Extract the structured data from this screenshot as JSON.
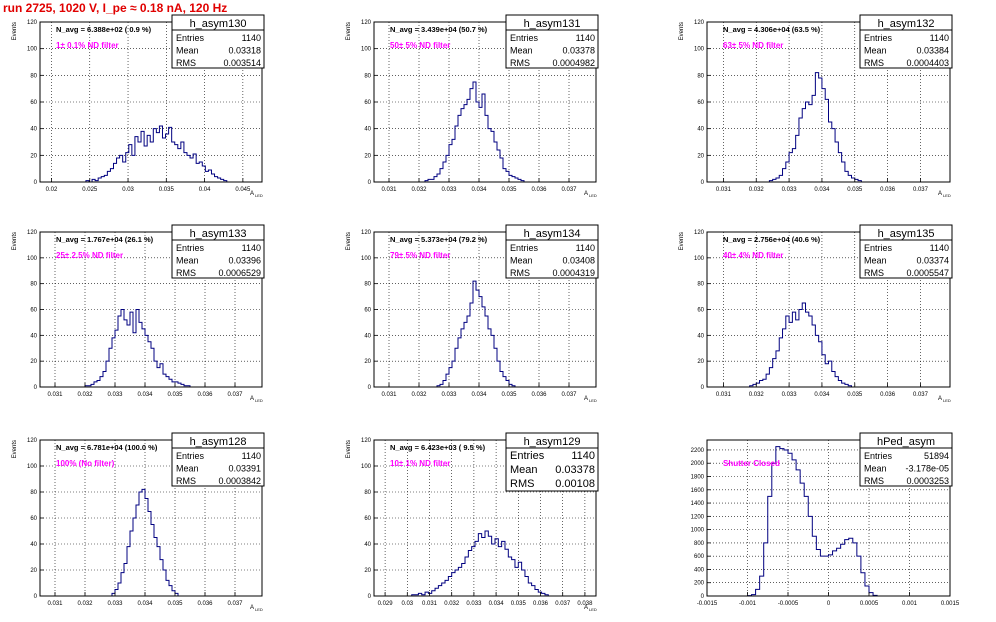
{
  "page": {
    "title": "run 2725,  1020 V, I_pe ≈ 0.18 nA, 120 Hz"
  },
  "colors": {
    "title": "#e00000",
    "histogram_line": "#000080",
    "annotation": "#ff00ff",
    "grid": "#000000"
  },
  "chart_data": [
    {
      "type": "bar",
      "histogram": true,
      "name": "h_asym130",
      "stats": {
        "entries": "1140",
        "mean": "0.03318",
        "rms": "0.003514"
      },
      "navg": "N_avg = 6.388e+02 ( 0.9 %)",
      "annotation": "1± 0.1% ND filter",
      "ylabel": "Events",
      "xlabel": "A",
      "xlabel_sub": "LED",
      "xlim": [
        0.0185,
        0.0475
      ],
      "ylim": [
        0,
        120
      ],
      "xticks": [
        0.02,
        0.025,
        0.03,
        0.035,
        0.04,
        0.045
      ],
      "xtick_labels": [
        "0.02",
        "0.025",
        "0.03",
        "0.035",
        "0.04",
        "0.045"
      ],
      "yticks": [
        0,
        20,
        40,
        60,
        80,
        100,
        120
      ],
      "ytick_labels": [
        "0",
        "20",
        "40",
        "60",
        "80",
        "100",
        "120"
      ],
      "bins": {
        "start": 0.0245,
        "width": 0.0004,
        "values": [
          1,
          0,
          2,
          1,
          3,
          4,
          5,
          8,
          10,
          14,
          18,
          20,
          15,
          22,
          28,
          20,
          34,
          30,
          38,
          27,
          35,
          30,
          40,
          37,
          42,
          33,
          36,
          41,
          30,
          28,
          25,
          30,
          22,
          20,
          18,
          21,
          14,
          15,
          12,
          8,
          9,
          6,
          4,
          3,
          2,
          1
        ]
      }
    },
    {
      "type": "bar",
      "histogram": true,
      "name": "h_asym131",
      "stats": {
        "entries": "1140",
        "mean": "0.03378",
        "rms": "0.0004982"
      },
      "navg": "N_avg = 3.439e+04 (50.7 %)",
      "annotation": "50± 5% ND filter",
      "ylabel": "Events",
      "xlabel": "A",
      "xlabel_sub": "LED",
      "xlim": [
        0.0305,
        0.0379
      ],
      "ylim": [
        0,
        120
      ],
      "xticks": [
        0.031,
        0.032,
        0.033,
        0.034,
        0.035,
        0.036,
        0.037
      ],
      "xtick_labels": [
        "0.031",
        "0.032",
        "0.033",
        "0.034",
        "0.035",
        "0.036",
        "0.037"
      ],
      "yticks": [
        0,
        20,
        40,
        60,
        80,
        100,
        120
      ],
      "ytick_labels": [
        "0",
        "20",
        "40",
        "60",
        "80",
        "100",
        "120"
      ],
      "bins": {
        "start": 0.0322,
        "width": 0.0001,
        "values": [
          1,
          2,
          2,
          4,
          6,
          10,
          15,
          20,
          28,
          32,
          42,
          50,
          55,
          58,
          62,
          70,
          75,
          60,
          56,
          66,
          50,
          40,
          38,
          30,
          24,
          18,
          10,
          8,
          5,
          4,
          3,
          2,
          1
        ]
      }
    },
    {
      "type": "bar",
      "histogram": true,
      "name": "h_asym132",
      "stats": {
        "entries": "1140",
        "mean": "0.03384",
        "rms": "0.0004403"
      },
      "navg": "N_avg = 4.306e+04 (63.5 %)",
      "annotation": "63± 5% ND filter",
      "ylabel": "Events",
      "xlabel": "A",
      "xlabel_sub": "LED",
      "xlim": [
        0.0305,
        0.0379
      ],
      "ylim": [
        0,
        120
      ],
      "xticks": [
        0.031,
        0.032,
        0.033,
        0.034,
        0.035,
        0.036,
        0.037
      ],
      "xtick_labels": [
        "0.031",
        "0.032",
        "0.033",
        "0.034",
        "0.035",
        "0.036",
        "0.037"
      ],
      "yticks": [
        0,
        20,
        40,
        60,
        80,
        100,
        120
      ],
      "ytick_labels": [
        "0",
        "20",
        "40",
        "60",
        "80",
        "100",
        "120"
      ],
      "bins": {
        "start": 0.0324,
        "width": 0.0001,
        "values": [
          1,
          2,
          3,
          5,
          10,
          15,
          22,
          25,
          35,
          48,
          55,
          60,
          58,
          65,
          82,
          78,
          70,
          62,
          45,
          40,
          30,
          22,
          15,
          8,
          5,
          3,
          2,
          1
        ]
      }
    },
    {
      "type": "bar",
      "histogram": true,
      "name": "h_asym133",
      "stats": {
        "entries": "1140",
        "mean": "0.03396",
        "rms": "0.0006529"
      },
      "navg": "N_avg = 1.767e+04 (26.1 %)",
      "annotation": "25± 2.5% ND filter",
      "ylabel": "Events",
      "xlabel": "A",
      "xlabel_sub": "LED",
      "xlim": [
        0.0305,
        0.0379
      ],
      "ylim": [
        0,
        120
      ],
      "xticks": [
        0.031,
        0.032,
        0.033,
        0.034,
        0.035,
        0.036,
        0.037
      ],
      "xtick_labels": [
        "0.031",
        "0.032",
        "0.033",
        "0.034",
        "0.035",
        "0.036",
        "0.037"
      ],
      "yticks": [
        0,
        20,
        40,
        60,
        80,
        100,
        120
      ],
      "ytick_labels": [
        "0",
        "20",
        "40",
        "60",
        "80",
        "100",
        "120"
      ],
      "bins": {
        "start": 0.032,
        "width": 0.0001,
        "values": [
          1,
          1,
          2,
          4,
          5,
          8,
          12,
          20,
          30,
          38,
          44,
          55,
          60,
          52,
          48,
          58,
          42,
          60,
          50,
          45,
          40,
          35,
          30,
          20,
          15,
          18,
          10,
          8,
          6,
          4,
          4,
          3,
          2,
          1,
          1
        ]
      }
    },
    {
      "type": "bar",
      "histogram": true,
      "name": "h_asym134",
      "stats": {
        "entries": "1140",
        "mean": "0.03408",
        "rms": "0.0004319"
      },
      "navg": "N_avg = 5.373e+04 (79.2 %)",
      "annotation": "79± 5% ND filter",
      "ylabel": "Events",
      "xlabel": "A",
      "xlabel_sub": "LED",
      "xlim": [
        0.0305,
        0.0379
      ],
      "ylim": [
        0,
        120
      ],
      "xticks": [
        0.031,
        0.032,
        0.033,
        0.034,
        0.035,
        0.036,
        0.037
      ],
      "xtick_labels": [
        "0.031",
        "0.032",
        "0.033",
        "0.034",
        "0.035",
        "0.036",
        "0.037"
      ],
      "yticks": [
        0,
        20,
        40,
        60,
        80,
        100,
        120
      ],
      "ytick_labels": [
        "0",
        "20",
        "40",
        "60",
        "80",
        "100",
        "120"
      ],
      "bins": {
        "start": 0.0326,
        "width": 0.0001,
        "values": [
          1,
          2,
          5,
          10,
          15,
          20,
          30,
          38,
          45,
          50,
          55,
          65,
          82,
          75,
          70,
          62,
          55,
          45,
          40,
          30,
          20,
          12,
          8,
          5,
          2,
          1
        ]
      }
    },
    {
      "type": "bar",
      "histogram": true,
      "name": "h_asym135",
      "stats": {
        "entries": "1140",
        "mean": "0.03374",
        "rms": "0.0005547"
      },
      "navg": "N_avg = 2.756e+04 (40.6 %)",
      "annotation": "40± 4% ND filter",
      "ylabel": "Events",
      "xlabel": "A",
      "xlabel_sub": "LED",
      "xlim": [
        0.0305,
        0.0379
      ],
      "ylim": [
        0,
        120
      ],
      "xticks": [
        0.031,
        0.032,
        0.033,
        0.034,
        0.035,
        0.036,
        0.037
      ],
      "xtick_labels": [
        "0.031",
        "0.032",
        "0.033",
        "0.034",
        "0.035",
        "0.036",
        "0.037"
      ],
      "yticks": [
        0,
        20,
        40,
        60,
        80,
        100,
        120
      ],
      "ytick_labels": [
        "0",
        "20",
        "40",
        "60",
        "80",
        "100",
        "120"
      ],
      "bins": {
        "start": 0.0318,
        "width": 0.0001,
        "values": [
          1,
          2,
          3,
          5,
          6,
          10,
          15,
          22,
          28,
          38,
          45,
          55,
          50,
          58,
          52,
          60,
          65,
          58,
          55,
          48,
          40,
          35,
          25,
          18,
          20,
          12,
          8,
          5,
          3,
          2,
          1
        ]
      }
    },
    {
      "type": "bar",
      "histogram": true,
      "name": "h_asym128",
      "stats": {
        "entries": "1140",
        "mean": "0.03391",
        "rms": "0.0003842"
      },
      "navg": "N_avg = 6.781e+04 (100.0 %)",
      "annotation": "100% (No filter)",
      "ylabel": "Events",
      "xlabel": "A",
      "xlabel_sub": "LED",
      "xlim": [
        0.0305,
        0.0379
      ],
      "ylim": [
        0,
        120
      ],
      "xticks": [
        0.031,
        0.032,
        0.033,
        0.034,
        0.035,
        0.036,
        0.037
      ],
      "xtick_labels": [
        "0.031",
        "0.032",
        "0.033",
        "0.034",
        "0.035",
        "0.036",
        "0.037"
      ],
      "yticks": [
        0,
        20,
        40,
        60,
        80,
        100,
        120
      ],
      "ytick_labels": [
        "0",
        "20",
        "40",
        "60",
        "80",
        "100",
        "120"
      ],
      "bins": {
        "start": 0.0329,
        "width": 0.0001,
        "values": [
          2,
          5,
          10,
          18,
          25,
          38,
          50,
          60,
          70,
          80,
          82,
          75,
          65,
          55,
          45,
          38,
          28,
          20,
          12,
          8,
          4,
          2
        ]
      }
    },
    {
      "type": "bar",
      "histogram": true,
      "name": "h_asym129",
      "stats": {
        "entries": "1140",
        "mean": "0.03378",
        "rms": "0.00108"
      },
      "navg": "N_avg = 6.423e+03 ( 9.5 %)",
      "annotation": "10± 1% ND filter",
      "ylabel": "Events",
      "xlabel": "A",
      "xlabel_sub": "LED",
      "xlim": [
        0.0285,
        0.0385
      ],
      "ylim": [
        0,
        120
      ],
      "xticks": [
        0.029,
        0.03,
        0.031,
        0.032,
        0.033,
        0.034,
        0.035,
        0.036,
        0.037,
        0.038
      ],
      "xtick_labels": [
        "0.029",
        "0.03",
        "0.031",
        "0.032",
        "0.033",
        "0.034",
        "0.035",
        "0.036",
        "0.037",
        "0.038"
      ],
      "yticks": [
        0,
        20,
        40,
        60,
        80,
        100,
        120
      ],
      "ytick_labels": [
        "0",
        "20",
        "40",
        "60",
        "80",
        "100",
        "120"
      ],
      "bins": {
        "start": 0.0302,
        "width": 0.00015,
        "values": [
          1,
          1,
          2,
          1,
          3,
          2,
          4,
          6,
          8,
          10,
          12,
          15,
          18,
          20,
          22,
          25,
          30,
          35,
          38,
          42,
          48,
          45,
          50,
          46,
          40,
          44,
          38,
          42,
          36,
          30,
          28,
          22,
          26,
          20,
          15,
          10,
          8,
          5,
          3,
          2,
          1
        ]
      }
    },
    {
      "type": "bar",
      "histogram": true,
      "name": "hPed_asym",
      "stats": {
        "entries": "51894",
        "mean": "-3.178e-05",
        "rms": "0.0003253"
      },
      "navg": "",
      "annotation": "Shutter Closed",
      "ylabel": "",
      "xlabel": "",
      "xlabel_sub": "",
      "xlim": [
        -0.0015,
        0.0015
      ],
      "ylim": [
        0,
        2350
      ],
      "xticks": [
        -0.0015,
        -0.001,
        -0.0005,
        0,
        0.0005,
        0.001,
        0.0015
      ],
      "xtick_labels": [
        "-0.0015",
        "-0.001",
        "-0.0005",
        "0",
        "0.0005",
        "0.001",
        "0.0015"
      ],
      "yticks": [
        0,
        200,
        400,
        600,
        800,
        1000,
        1200,
        1400,
        1600,
        1800,
        2000,
        2200
      ],
      "ytick_labels": [
        "0",
        "200",
        "400",
        "600",
        "800",
        "1000",
        "1200",
        "1400",
        "1600",
        "1800",
        "2000",
        "2200"
      ],
      "bins": {
        "start": -0.001,
        "width": 5e-05,
        "values": [
          5,
          20,
          100,
          300,
          800,
          1500,
          2000,
          2250,
          2220,
          2200,
          2150,
          2050,
          1900,
          1700,
          1500,
          1200,
          900,
          700,
          600,
          600,
          620,
          680,
          720,
          780,
          850,
          870,
          800,
          600,
          350,
          150,
          50,
          10
        ]
      }
    }
  ]
}
